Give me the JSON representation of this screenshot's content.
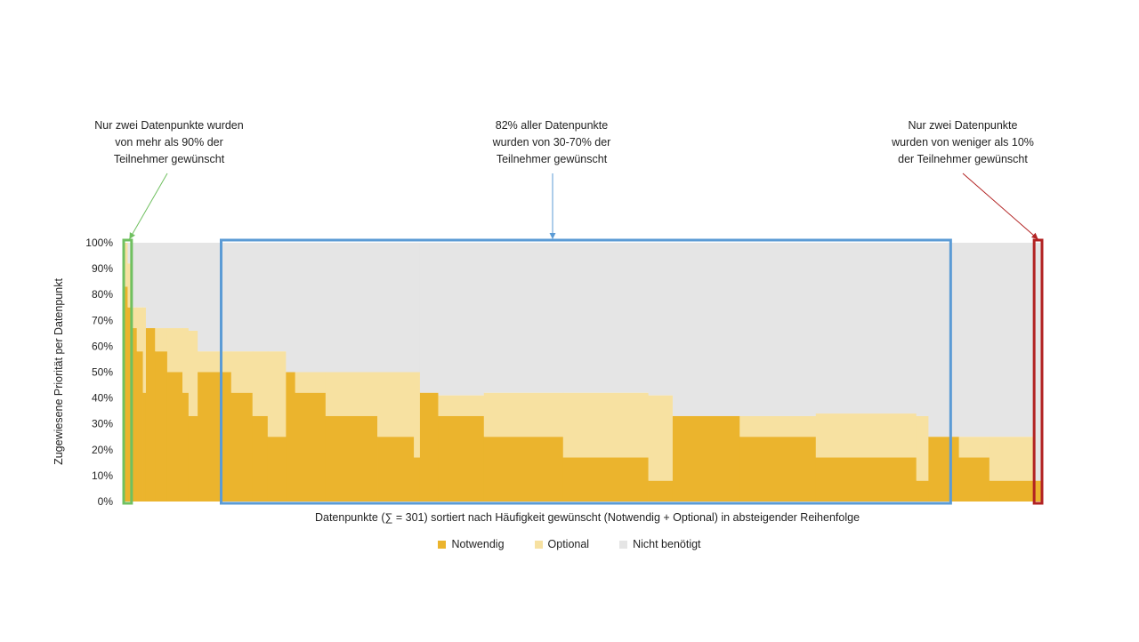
{
  "annotations": {
    "left": [
      "Nur zwei Datenpunkte wurden",
      "von mehr als 90% der",
      "Teilnehmer gewünscht"
    ],
    "middle": [
      "82% aller Datenpunkte",
      "wurden von 30-70% der",
      "Teilnehmer gewünscht"
    ],
    "right": [
      "Nur zwei Datenpunkte",
      "wurden von weniger als 10%",
      "der Teilnehmer gewünscht"
    ]
  },
  "colors": {
    "notwendig": "#EBB42D",
    "optional": "#F7E1A1",
    "nicht": "#E5E5E5",
    "green": "#70C060",
    "blue": "#5B9BD5",
    "red": "#B22222"
  },
  "chart_data": {
    "type": "area",
    "title": "",
    "xlabel": "Datenpunkte (∑ = 301) sortiert nach Häufigkeit gewünscht (Notwendig + Optional) in absteigender Reihenfolge",
    "ylabel": "Zugewiesene Priorität per Datenpunkt",
    "xlim": [
      0,
      301
    ],
    "ylim": [
      0,
      100
    ],
    "y_ticks": [
      "0%",
      "10%",
      "20%",
      "30%",
      "40%",
      "50%",
      "60%",
      "70%",
      "80%",
      "90%",
      "100%"
    ],
    "legend": [
      "Notwendig",
      "Optional",
      "Nicht benötigt"
    ],
    "legend_position": "bottom",
    "series_segments": [
      {
        "from": 0,
        "to": 1,
        "notwendig": 83,
        "optional": 17
      },
      {
        "from": 1,
        "to": 2,
        "notwendig": 75,
        "optional": 17
      },
      {
        "from": 2,
        "to": 4,
        "notwendig": 67,
        "optional": 8
      },
      {
        "from": 4,
        "to": 6,
        "notwendig": 58,
        "optional": 17
      },
      {
        "from": 6,
        "to": 7,
        "notwendig": 42,
        "optional": 33
      },
      {
        "from": 7,
        "to": 10,
        "notwendig": 67,
        "optional": 0
      },
      {
        "from": 10,
        "to": 14,
        "notwendig": 58,
        "optional": 9
      },
      {
        "from": 14,
        "to": 19,
        "notwendig": 50,
        "optional": 17
      },
      {
        "from": 19,
        "to": 21,
        "notwendig": 42,
        "optional": 25
      },
      {
        "from": 21,
        "to": 24,
        "notwendig": 33,
        "optional": 33
      },
      {
        "from": 24,
        "to": 35,
        "notwendig": 50,
        "optional": 8
      },
      {
        "from": 35,
        "to": 42,
        "notwendig": 42,
        "optional": 16
      },
      {
        "from": 42,
        "to": 47,
        "notwendig": 33,
        "optional": 25
      },
      {
        "from": 47,
        "to": 53,
        "notwendig": 25,
        "optional": 33
      },
      {
        "from": 53,
        "to": 56,
        "notwendig": 50,
        "optional": 0
      },
      {
        "from": 56,
        "to": 66,
        "notwendig": 42,
        "optional": 8
      },
      {
        "from": 66,
        "to": 83,
        "notwendig": 33,
        "optional": 17
      },
      {
        "from": 83,
        "to": 95,
        "notwendig": 25,
        "optional": 25
      },
      {
        "from": 95,
        "to": 97,
        "notwendig": 17,
        "optional": 33
      },
      {
        "from": 97,
        "to": 103,
        "notwendig": 42,
        "optional": 0
      },
      {
        "from": 103,
        "to": 118,
        "notwendig": 33,
        "optional": 8
      },
      {
        "from": 118,
        "to": 144,
        "notwendig": 25,
        "optional": 17
      },
      {
        "from": 144,
        "to": 172,
        "notwendig": 17,
        "optional": 25
      },
      {
        "from": 172,
        "to": 180,
        "notwendig": 8,
        "optional": 33
      },
      {
        "from": 180,
        "to": 202,
        "notwendig": 33,
        "optional": 0
      },
      {
        "from": 202,
        "to": 227,
        "notwendig": 25,
        "optional": 8
      },
      {
        "from": 227,
        "to": 260,
        "notwendig": 17,
        "optional": 17
      },
      {
        "from": 260,
        "to": 264,
        "notwendig": 8,
        "optional": 25
      },
      {
        "from": 264,
        "to": 274,
        "notwendig": 25,
        "optional": 0
      },
      {
        "from": 274,
        "to": 284,
        "notwendig": 17,
        "optional": 8
      },
      {
        "from": 284,
        "to": 299,
        "notwendig": 8,
        "optional": 17
      },
      {
        "from": 299,
        "to": 301,
        "notwendig": 8,
        "optional": 0
      }
    ],
    "highlight_boxes": [
      {
        "name": "green",
        "from": 0,
        "to": 2
      },
      {
        "name": "blue",
        "from": 32,
        "to": 271
      },
      {
        "name": "red",
        "from": 299,
        "to": 301
      }
    ]
  }
}
